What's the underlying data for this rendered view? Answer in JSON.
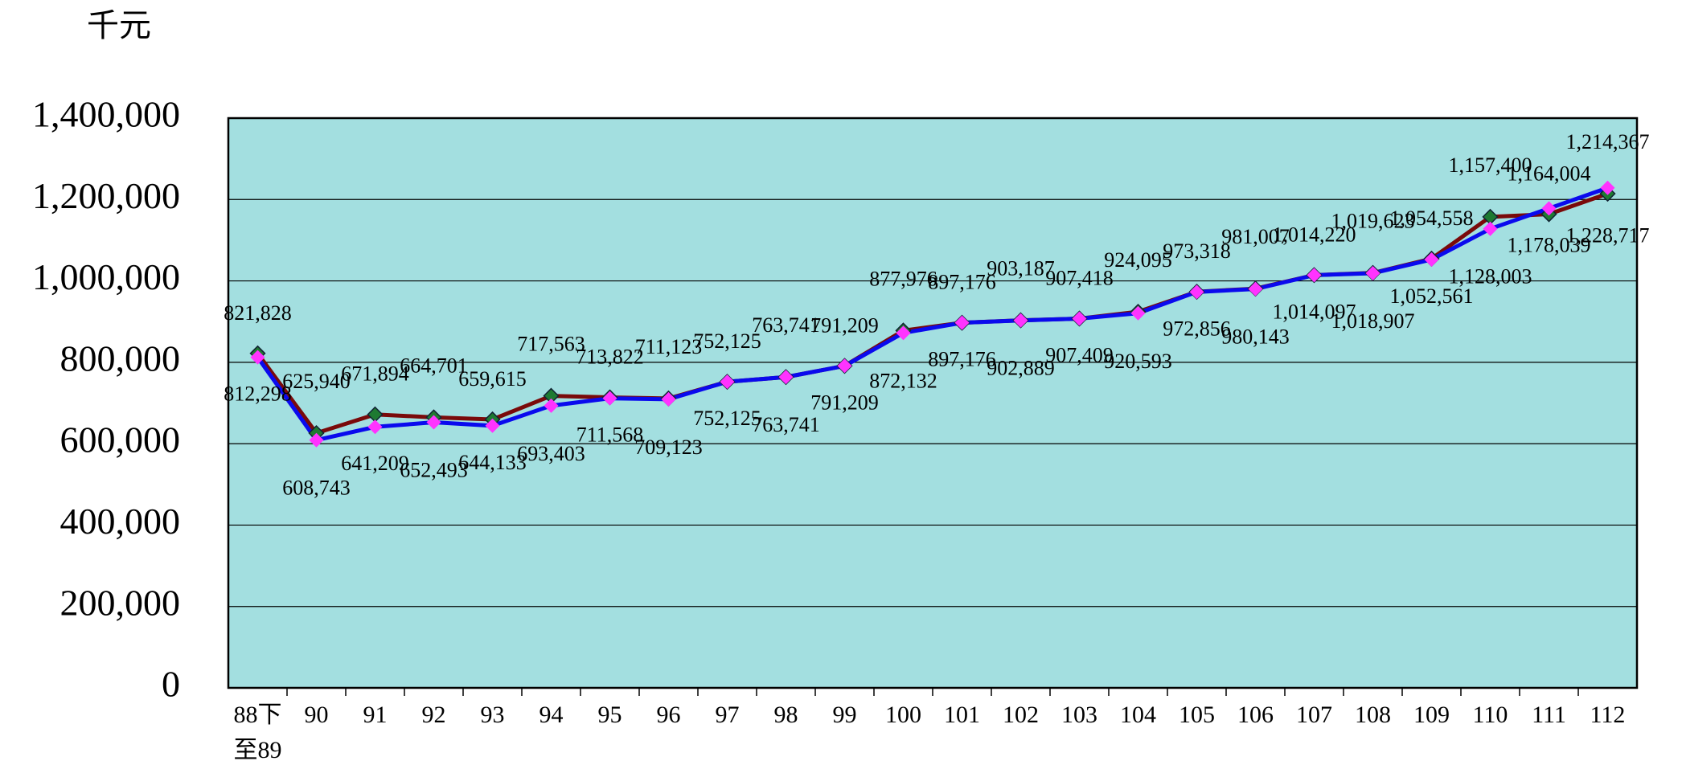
{
  "chart_data": {
    "type": "line",
    "unit_label": "千元",
    "categories": [
      "88下\n至89",
      "90",
      "91",
      "92",
      "93",
      "94",
      "95",
      "96",
      "97",
      "98",
      "99",
      "100",
      "101",
      "102",
      "103",
      "104",
      "105",
      "106",
      "107",
      "108",
      "109",
      "110",
      "111",
      "112"
    ],
    "series": [
      {
        "color": "#7a0a0a",
        "marker_color": "#1e7a32",
        "values": [
          821828,
          625940,
          671894,
          664701,
          659615,
          717563,
          713822,
          711123,
          752125,
          763741,
          791209,
          877976,
          897176,
          903187,
          907418,
          924095,
          973318,
          981007,
          1014220,
          1019623,
          1054558,
          1157400,
          1164004,
          1214367
        ],
        "value_labels": [
          "821,828",
          "625,940",
          "671,894",
          "664,701",
          "659,615",
          "717,563",
          "713,822",
          "711,123",
          "752,125",
          "763,741",
          "791,209",
          "877,976",
          "897,176",
          "903,187",
          "907,418",
          "924,095",
          "973,318",
          "981,007",
          "1,014,220",
          "1,019,623",
          "1,054,558",
          "1,157,400",
          "1,164,004",
          "1,214,367"
        ]
      },
      {
        "color": "#0a0aee",
        "marker_color": "#ff33ff",
        "values": [
          812298,
          608743,
          641209,
          652493,
          644133,
          693403,
          711568,
          709123,
          752125,
          763741,
          791209,
          872132,
          897176,
          902889,
          907409,
          920593,
          972856,
          980143,
          1014097,
          1018907,
          1052561,
          1128003,
          1178039,
          1228717
        ],
        "value_labels": [
          "812,298",
          "608,743",
          "641,209",
          "652,493",
          "644,133",
          "693,403",
          "711,568",
          "709,123",
          "752,125",
          "763,741",
          "791,209",
          "872,132",
          "897,176",
          "902,889",
          "907,409",
          "920,593",
          "972,856",
          "980,143",
          "1,014,097",
          "1,018,907",
          "1,052,561",
          "1,128,003",
          "1,178,039",
          "1,228,717"
        ]
      }
    ],
    "ylim": [
      0,
      1400000
    ],
    "yticks": [
      0,
      {
        "value": 200000,
        "label": "200,000"
      },
      {
        "value": 400000,
        "label": "400,000"
      },
      {
        "value": 600000,
        "label": "600,000"
      },
      {
        "value": 800000,
        "label": "800,000"
      },
      {
        "value": 1000000,
        "label": "1,000,000"
      },
      {
        "value": 1200000,
        "label": "1,200,000"
      },
      {
        "value": 1400000,
        "label": "1,400,000"
      }
    ],
    "grid": true,
    "plot_background": "#a3dfe0"
  }
}
